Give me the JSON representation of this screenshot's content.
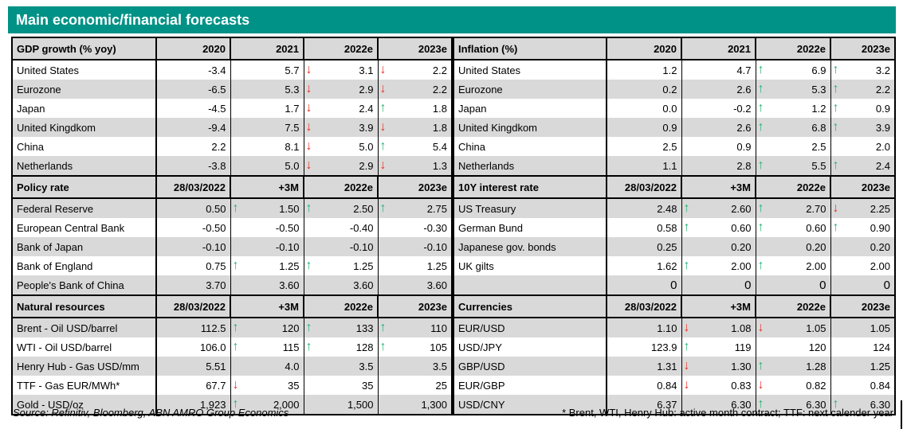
{
  "title": "Main economic/financial forecasts",
  "colors": {
    "accent": "#009286",
    "stripe": "#D9D9D9",
    "arrow_up": "#22B573",
    "arrow_down": "#EE3124"
  },
  "footer": {
    "source": "Source: Refinitiv, Bloomberg, ABN AMRO Group Economics",
    "note": "* Brent, WTI, Henry Hub: active month contract; TTF: next calender year"
  },
  "left_sections": [
    {
      "header": "GDP growth (% yoy)",
      "columns": [
        "2020",
        "2021",
        "2022e",
        "2023e"
      ],
      "rows": [
        {
          "label": "United States",
          "cells": [
            {
              "v": "-3.4"
            },
            {
              "v": "5.7"
            },
            {
              "v": "3.1",
              "arrow": "down"
            },
            {
              "v": "2.2",
              "arrow": "down"
            }
          ]
        },
        {
          "label": "Eurozone",
          "cells": [
            {
              "v": "-6.5"
            },
            {
              "v": "5.3"
            },
            {
              "v": "2.9",
              "arrow": "down"
            },
            {
              "v": "2.2",
              "arrow": "down"
            }
          ]
        },
        {
          "label": "Japan",
          "cells": [
            {
              "v": "-4.5"
            },
            {
              "v": "1.7"
            },
            {
              "v": "2.4",
              "arrow": "down"
            },
            {
              "v": "1.8",
              "arrow": "up"
            }
          ]
        },
        {
          "label": "United Kingdkom",
          "cells": [
            {
              "v": "-9.4"
            },
            {
              "v": "7.5"
            },
            {
              "v": "3.9",
              "arrow": "down"
            },
            {
              "v": "1.8",
              "arrow": "down"
            }
          ]
        },
        {
          "label": "China",
          "cells": [
            {
              "v": "2.2"
            },
            {
              "v": "8.1"
            },
            {
              "v": "5.0",
              "arrow": "down"
            },
            {
              "v": "5.4",
              "arrow": "up"
            }
          ]
        },
        {
          "label": "Netherlands",
          "cells": [
            {
              "v": "-3.8"
            },
            {
              "v": "5.0"
            },
            {
              "v": "2.9",
              "arrow": "down"
            },
            {
              "v": "1.3",
              "arrow": "down"
            }
          ]
        }
      ]
    },
    {
      "header": "Policy rate",
      "columns": [
        "28/03/2022",
        "+3M",
        "2022e",
        "2023e"
      ],
      "rows": [
        {
          "label": "Federal Reserve",
          "cells": [
            {
              "v": "0.50"
            },
            {
              "v": "1.50",
              "arrow": "up"
            },
            {
              "v": "2.50",
              "arrow": "up"
            },
            {
              "v": "2.75",
              "arrow": "up"
            }
          ]
        },
        {
          "label": "European Central Bank",
          "cells": [
            {
              "v": "-0.50"
            },
            {
              "v": "-0.50"
            },
            {
              "v": "-0.40"
            },
            {
              "v": "-0.30"
            }
          ]
        },
        {
          "label": "Bank of Japan",
          "cells": [
            {
              "v": "-0.10"
            },
            {
              "v": "-0.10"
            },
            {
              "v": "-0.10"
            },
            {
              "v": "-0.10"
            }
          ]
        },
        {
          "label": "Bank of England",
          "cells": [
            {
              "v": "0.75"
            },
            {
              "v": "1.25",
              "arrow": "up"
            },
            {
              "v": "1.25",
              "arrow": "up"
            },
            {
              "v": "1.25"
            }
          ]
        },
        {
          "label": "People's Bank of China",
          "cells": [
            {
              "v": "3.70"
            },
            {
              "v": "3.60"
            },
            {
              "v": "3.60"
            },
            {
              "v": "3.60"
            }
          ]
        }
      ]
    },
    {
      "header": "Natural resources",
      "columns": [
        "28/03/2022",
        "+3M",
        "2022e",
        "2023e"
      ],
      "rows": [
        {
          "label": "Brent - Oil USD/barrel",
          "cells": [
            {
              "v": "112.5"
            },
            {
              "v": "120",
              "arrow": "up"
            },
            {
              "v": "133",
              "arrow": "up"
            },
            {
              "v": "110",
              "arrow": "up"
            }
          ]
        },
        {
          "label": "WTI - Oil USD/barrel",
          "cells": [
            {
              "v": "106.0"
            },
            {
              "v": "115",
              "arrow": "up"
            },
            {
              "v": "128",
              "arrow": "up"
            },
            {
              "v": "105",
              "arrow": "up"
            }
          ]
        },
        {
          "label": "Henry Hub - Gas USD/mm",
          "cells": [
            {
              "v": "5.51"
            },
            {
              "v": "4.0"
            },
            {
              "v": "3.5"
            },
            {
              "v": "3.5"
            }
          ]
        },
        {
          "label": "TTF - Gas EUR/MWh*",
          "cells": [
            {
              "v": "67.7"
            },
            {
              "v": "35",
              "arrow": "down"
            },
            {
              "v": "35"
            },
            {
              "v": "25"
            }
          ]
        },
        {
          "label": "Gold - USD/oz",
          "cells": [
            {
              "v": "1,923"
            },
            {
              "v": "2,000",
              "arrow": "up"
            },
            {
              "v": "1,500"
            },
            {
              "v": "1,300"
            }
          ]
        }
      ]
    }
  ],
  "right_sections": [
    {
      "header": "Inflation (%)",
      "columns": [
        "2020",
        "2021",
        "2022e",
        "2023e"
      ],
      "rows": [
        {
          "label": "United States",
          "cells": [
            {
              "v": "1.2"
            },
            {
              "v": "4.7"
            },
            {
              "v": "6.9",
              "arrow": "up"
            },
            {
              "v": "3.2",
              "arrow": "up"
            }
          ]
        },
        {
          "label": "Eurozone",
          "cells": [
            {
              "v": "0.2"
            },
            {
              "v": "2.6"
            },
            {
              "v": "5.3",
              "arrow": "up"
            },
            {
              "v": "2.2",
              "arrow": "up"
            }
          ]
        },
        {
          "label": "Japan",
          "cells": [
            {
              "v": "0.0"
            },
            {
              "v": "-0.2"
            },
            {
              "v": "1.2",
              "arrow": "up"
            },
            {
              "v": "0.9",
              "arrow": "up"
            }
          ]
        },
        {
          "label": "United Kingdkom",
          "cells": [
            {
              "v": "0.9"
            },
            {
              "v": "2.6"
            },
            {
              "v": "6.8",
              "arrow": "up"
            },
            {
              "v": "3.9",
              "arrow": "up"
            }
          ]
        },
        {
          "label": "China",
          "cells": [
            {
              "v": "2.5"
            },
            {
              "v": "0.9"
            },
            {
              "v": "2.5"
            },
            {
              "v": "2.0"
            }
          ]
        },
        {
          "label": "Netherlands",
          "cells": [
            {
              "v": "1.1"
            },
            {
              "v": "2.8"
            },
            {
              "v": "5.5",
              "arrow": "up"
            },
            {
              "v": "2.4",
              "arrow": "up"
            }
          ]
        }
      ]
    },
    {
      "header": "10Y interest rate",
      "columns": [
        "28/03/2022",
        "+3M",
        "2022e",
        "2023e"
      ],
      "rows": [
        {
          "label": "US Treasury",
          "cells": [
            {
              "v": "2.48"
            },
            {
              "v": "2.60",
              "arrow": "up"
            },
            {
              "v": "2.70",
              "arrow": "up"
            },
            {
              "v": "2.25",
              "arrow": "down"
            }
          ]
        },
        {
          "label": "German Bund",
          "cells": [
            {
              "v": "0.58"
            },
            {
              "v": "0.60",
              "arrow": "up"
            },
            {
              "v": "0.60",
              "arrow": "up"
            },
            {
              "v": "0.90",
              "arrow": "up"
            }
          ]
        },
        {
          "label": "Japanese gov. bonds",
          "cells": [
            {
              "v": "0.25"
            },
            {
              "v": "0.20"
            },
            {
              "v": "0.20"
            },
            {
              "v": "0.20"
            }
          ]
        },
        {
          "label": "UK gilts",
          "cells": [
            {
              "v": "1.62"
            },
            {
              "v": "2.00",
              "arrow": "up"
            },
            {
              "v": "2.00",
              "arrow": "up"
            },
            {
              "v": "2.00"
            }
          ]
        },
        {
          "label": "",
          "large": true,
          "cells": [
            {
              "v": "0"
            },
            {
              "v": "0"
            },
            {
              "v": "0"
            },
            {
              "v": "0"
            }
          ]
        }
      ]
    },
    {
      "header": "Currencies",
      "columns": [
        "28/03/2022",
        "+3M",
        "2022e",
        "2023e"
      ],
      "rows": [
        {
          "label": "EUR/USD",
          "cells": [
            {
              "v": "1.10"
            },
            {
              "v": "1.08",
              "arrow": "down"
            },
            {
              "v": "1.05",
              "arrow": "down"
            },
            {
              "v": "1.05"
            }
          ]
        },
        {
          "label": "USD/JPY",
          "cells": [
            {
              "v": "123.9"
            },
            {
              "v": "119",
              "arrow": "up"
            },
            {
              "v": "120"
            },
            {
              "v": "124"
            }
          ]
        },
        {
          "label": "GBP/USD",
          "cells": [
            {
              "v": "1.31"
            },
            {
              "v": "1.30",
              "arrow": "down"
            },
            {
              "v": "1.28",
              "arrow": "up"
            },
            {
              "v": "1.25"
            }
          ]
        },
        {
          "label": "EUR/GBP",
          "cells": [
            {
              "v": "0.84"
            },
            {
              "v": "0.83",
              "arrow": "down"
            },
            {
              "v": "0.82",
              "arrow": "down"
            },
            {
              "v": "0.84"
            }
          ]
        },
        {
          "label": "USD/CNY",
          "cells": [
            {
              "v": "6.37"
            },
            {
              "v": "6.30"
            },
            {
              "v": "6.30",
              "arrow": "up"
            },
            {
              "v": "6.30",
              "arrow": "up"
            }
          ]
        }
      ]
    }
  ]
}
